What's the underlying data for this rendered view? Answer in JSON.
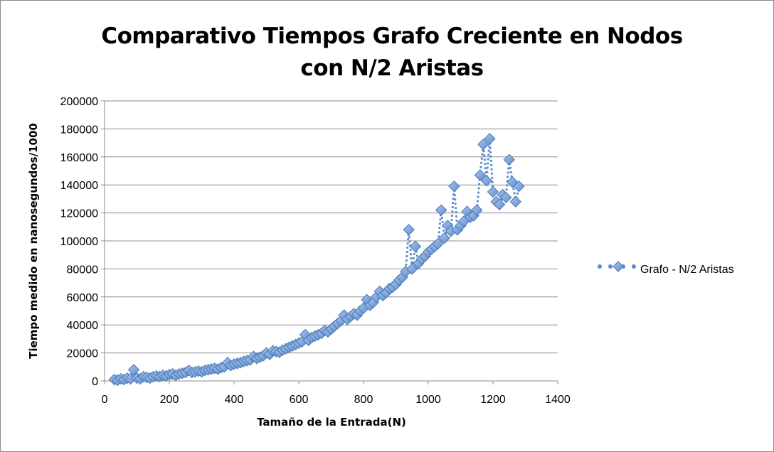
{
  "chart_data": {
    "type": "scatter",
    "title": "Comparativo Tiempos Grafo Creciente en Nodos con N/2 Aristas",
    "xlabel": "Tamaño de la Entrada(N)",
    "ylabel": "Tiempo medido en nanosegundos/1000",
    "xlim": [
      0,
      1400
    ],
    "ylim": [
      0,
      200000
    ],
    "x_ticks": [
      0,
      200,
      400,
      600,
      800,
      1000,
      1200,
      1400
    ],
    "y_ticks": [
      0,
      20000,
      40000,
      60000,
      80000,
      100000,
      120000,
      140000,
      160000,
      180000,
      200000
    ],
    "grid": "horizontal",
    "legend_position": "right",
    "series": [
      {
        "name": "Grafo - N/2 Aristas",
        "color": "#7ea6dc",
        "marker": "diamond",
        "line_style": "dotted",
        "x": [
          30,
          40,
          50,
          60,
          70,
          80,
          90,
          100,
          110,
          120,
          130,
          140,
          150,
          160,
          170,
          180,
          190,
          200,
          210,
          220,
          230,
          240,
          250,
          260,
          270,
          280,
          290,
          300,
          310,
          320,
          330,
          340,
          350,
          360,
          370,
          380,
          390,
          400,
          410,
          420,
          430,
          440,
          450,
          460,
          470,
          480,
          490,
          500,
          510,
          520,
          530,
          540,
          550,
          560,
          570,
          580,
          590,
          600,
          610,
          620,
          630,
          640,
          650,
          660,
          670,
          680,
          690,
          700,
          710,
          720,
          730,
          740,
          750,
          760,
          770,
          780,
          790,
          800,
          810,
          820,
          830,
          840,
          850,
          860,
          870,
          880,
          890,
          900,
          910,
          920,
          930,
          940,
          950,
          960,
          970,
          980,
          990,
          1000,
          1010,
          1020,
          1030,
          1040,
          1050,
          1060,
          1070,
          1080,
          1090,
          1100,
          1110,
          1120,
          1130,
          1140,
          1150,
          1160,
          1170,
          1180,
          1190,
          1200,
          1210,
          1220,
          1230,
          1240,
          1250,
          1260,
          1270,
          1280
        ],
        "y": [
          1000,
          500,
          1500,
          1000,
          2000,
          1500,
          8000,
          2000,
          1500,
          3000,
          2500,
          2000,
          3000,
          3500,
          3000,
          4000,
          3500,
          4500,
          5000,
          4000,
          5000,
          5500,
          6000,
          7500,
          6000,
          6500,
          7000,
          6500,
          7500,
          8000,
          8500,
          9000,
          8500,
          9500,
          10000,
          13000,
          11000,
          12000,
          12500,
          13000,
          14000,
          14500,
          15000,
          17500,
          16000,
          17000,
          18000,
          20000,
          19000,
          21500,
          21000,
          20500,
          22000,
          23000,
          24000,
          25000,
          26000,
          27000,
          28000,
          33000,
          29000,
          31000,
          32000,
          33000,
          34000,
          36000,
          35000,
          37000,
          39000,
          41000,
          43000,
          47000,
          44000,
          46000,
          48000,
          47000,
          50000,
          52000,
          58000,
          54000,
          56000,
          60000,
          64000,
          61000,
          63000,
          66000,
          67000,
          69000,
          72000,
          74000,
          78000,
          108000,
          80000,
          96000,
          84000,
          87000,
          89000,
          92000,
          94000,
          96000,
          98000,
          122000,
          102000,
          111000,
          107000,
          139000,
          108000,
          111000,
          114000,
          121000,
          117000,
          118000,
          122000,
          147000,
          169000,
          143000,
          173000,
          135000,
          128000,
          126000,
          133000,
          131000,
          158000,
          142000,
          128000,
          139000
        ]
      }
    ]
  }
}
